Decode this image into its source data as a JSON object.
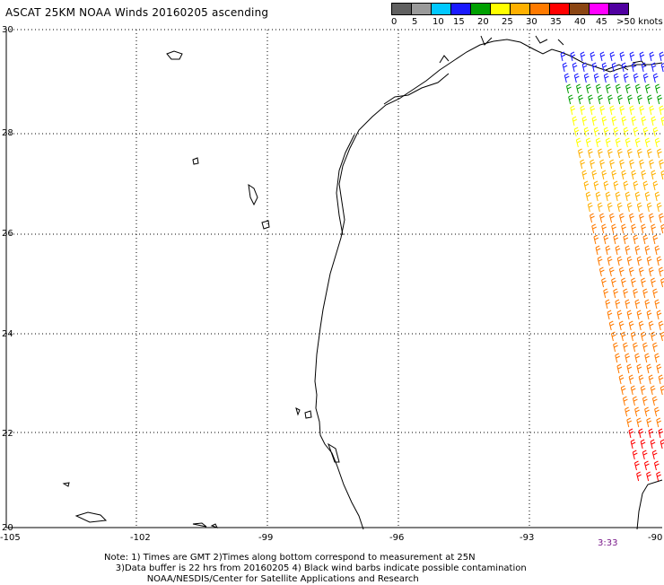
{
  "title": "ASCAT 25KM NOAA Winds 20160205 ascending",
  "legend": {
    "labels": [
      "0",
      "5",
      "10",
      "15",
      "20",
      "25",
      "30",
      "35",
      "40",
      "45",
      ">50 knots"
    ],
    "colors": [
      "#606060",
      "#9a9a9a",
      "#00c8ff",
      "#1a1aff",
      "#00a000",
      "#ffff00",
      "#ffb000",
      "#ff7a00",
      "#ff0000",
      "#8b4513",
      "#ff00ff",
      "#5000a0"
    ]
  },
  "map": {
    "lat_range": [
      20,
      30
    ],
    "lon_range": [
      -105,
      -90
    ],
    "lat_labels": [
      "30",
      "28",
      "26",
      "24",
      "22",
      "20"
    ],
    "lon_labels": [
      "-105",
      "-102",
      "-99",
      "-96",
      "-93",
      "-90"
    ]
  },
  "timestamp": "3:33",
  "note": {
    "line1": "Note: 1) Times are GMT 2)Times along bottom correspond to measurement at 25N",
    "line2": "3)Data buffer is 22 hrs from 20160205 4) Black wind barbs indicate possible contamination",
    "line3": "NOAA/NESDIS/Center for Satellite Applications and Research"
  }
}
